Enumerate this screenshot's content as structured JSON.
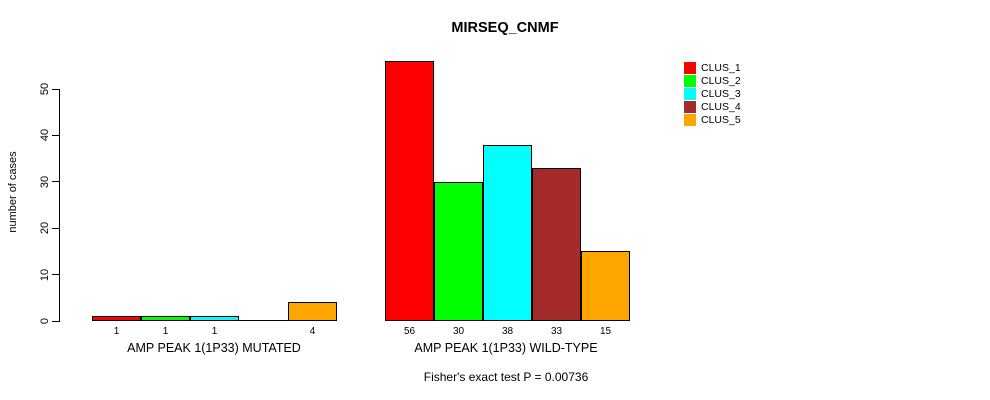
{
  "chart_data": {
    "type": "bar",
    "title": "MIRSEQ_CNMF",
    "ylabel": "number of cases",
    "yticks": [
      0,
      10,
      20,
      30,
      40,
      50
    ],
    "ylim": [
      0,
      58
    ],
    "grid": false,
    "legend_position": "right",
    "legend": [
      {
        "name": "CLUS_1",
        "color": "#FF0000"
      },
      {
        "name": "CLUS_2",
        "color": "#00FF00"
      },
      {
        "name": "CLUS_3",
        "color": "#00FFFF"
      },
      {
        "name": "CLUS_4",
        "color": "#A52A2A"
      },
      {
        "name": "CLUS_5",
        "color": "#FFA500"
      }
    ],
    "categories": [
      "AMP PEAK 1(1P33) MUTATED",
      "AMP PEAK 1(1P33) WILD-TYPE"
    ],
    "series": [
      {
        "name": "CLUS_1",
        "values": [
          1,
          56
        ]
      },
      {
        "name": "CLUS_2",
        "values": [
          1,
          30
        ]
      },
      {
        "name": "CLUS_3",
        "values": [
          1,
          38
        ]
      },
      {
        "name": "CLUS_4",
        "values": [
          0,
          33
        ]
      },
      {
        "name": "CLUS_5",
        "values": [
          4,
          15
        ]
      }
    ],
    "bar_value_labels": [
      [
        "1",
        "1",
        "1",
        "",
        "4"
      ],
      [
        "56",
        "30",
        "38",
        "33",
        "15"
      ]
    ],
    "footnote": "Fisher's exact test P = 0.00736"
  }
}
